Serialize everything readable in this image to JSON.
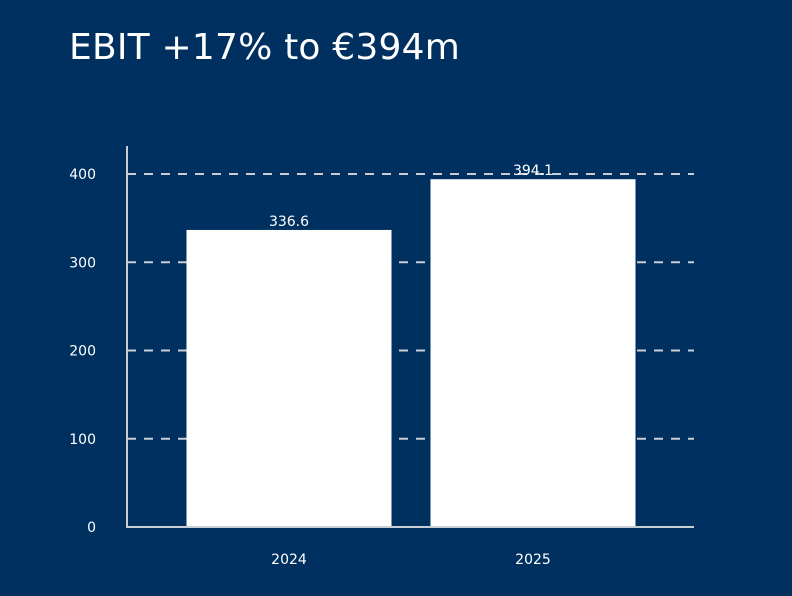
{
  "title": "EBIT +17% to €394m",
  "colors": {
    "background": "#003060",
    "foreground": "#ffffff",
    "axis": "#c8cdd6",
    "grid": "#c8cdd6"
  },
  "chart_data": {
    "type": "bar",
    "title": "EBIT +17% to €394m",
    "xlabel": "",
    "ylabel": "",
    "categories": [
      "2024",
      "2025"
    ],
    "values": [
      336.6,
      394.1
    ],
    "data_labels": [
      "336.6",
      "394.1"
    ],
    "ylim": [
      0,
      400
    ],
    "yticks": [
      0,
      100,
      200,
      300,
      400
    ],
    "ytick_labels": [
      "0",
      "100",
      "200",
      "300",
      "400"
    ],
    "grid": true,
    "grid_style": "dashed",
    "legend": "none"
  }
}
